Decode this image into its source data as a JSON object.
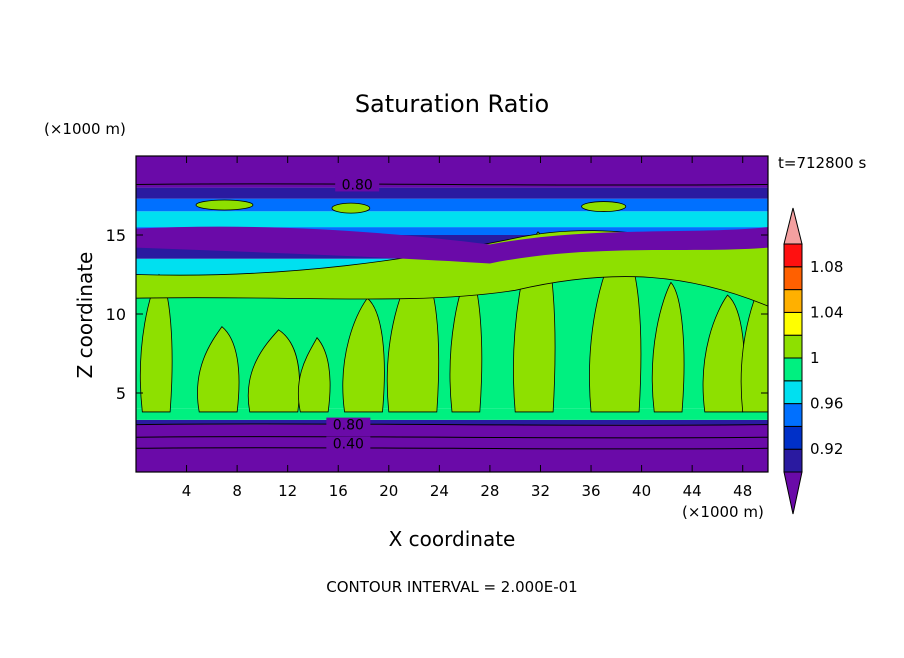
{
  "chart_data": {
    "type": "heatmap",
    "title": "Saturation Ratio",
    "xlabel": "X coordinate",
    "ylabel": "Z coordinate",
    "x_unit": "(×1000 m)",
    "z_unit": "(×1000 m)",
    "time_label": "t=712800 s",
    "footer": "CONTOUR INTERVAL = 2.000E-01",
    "xlim": [
      0,
      50
    ],
    "ylim": [
      0,
      20
    ],
    "xticks": [
      "4",
      "8",
      "12",
      "16",
      "20",
      "24",
      "28",
      "32",
      "36",
      "40",
      "44",
      "48"
    ],
    "yticks": [
      "5",
      "10",
      "15"
    ],
    "colorbar": {
      "labels": [
        "0.92",
        "0.96",
        "1",
        "1.04",
        "1.08"
      ],
      "levels": [
        0.92,
        0.94,
        0.96,
        0.98,
        1.0,
        1.02,
        1.04,
        1.06,
        1.08,
        1.1
      ],
      "colors": [
        "#6a0aa8",
        "#2a1aa0",
        "#0030c8",
        "#0070ff",
        "#00e0f0",
        "#00f080",
        "#8ee000",
        "#ffff00",
        "#ffb000",
        "#ff6000",
        "#ff1010",
        "#f4a0a0"
      ]
    },
    "contour_labels": [
      "0.80",
      "0.80",
      "0.40"
    ],
    "bands": [
      {
        "z0": 0.0,
        "z1": 3.0,
        "color": "#6a0aa8"
      },
      {
        "z0": 3.0,
        "z1": 3.3,
        "color": "#2a1aa0"
      },
      {
        "z0": 3.3,
        "z1": 4.0,
        "color": "#00f080"
      },
      {
        "z0": 4.0,
        "z1": 12.5,
        "color": "#00f080"
      },
      {
        "z0": 12.5,
        "z1": 13.5,
        "color": "#00e0f0"
      },
      {
        "z0": 13.5,
        "z1": 15.0,
        "color": "#2a1aa0"
      },
      {
        "z0": 15.0,
        "z1": 15.5,
        "color": "#0070ff"
      },
      {
        "z0": 15.5,
        "z1": 16.5,
        "color": "#00e0f0"
      },
      {
        "z0": 16.5,
        "z1": 17.3,
        "color": "#0070ff"
      },
      {
        "z0": 17.3,
        "z1": 18.0,
        "color": "#2a1aa0"
      },
      {
        "z0": 18.0,
        "z1": 20.0,
        "color": "#6a0aa8"
      }
    ]
  }
}
